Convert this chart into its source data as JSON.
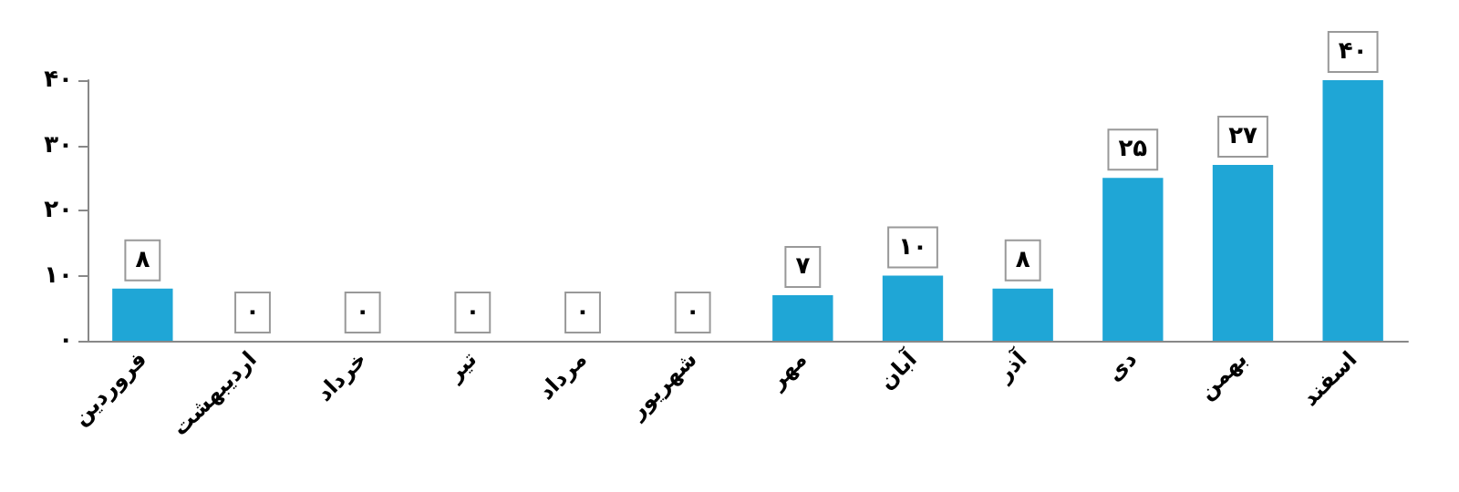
{
  "chart_data": {
    "type": "bar",
    "categories": [
      "فروردین",
      "اردیبهشت",
      "خرداد",
      "تیر",
      "مرداد",
      "شهریور",
      "مهر",
      "آبان",
      "آذر",
      "دی",
      "بهمن",
      "اسفند"
    ],
    "values": [
      8,
      0,
      0,
      0,
      0,
      0,
      7,
      10,
      8,
      25,
      27,
      40
    ],
    "value_labels": [
      "۸",
      "۰",
      "۰",
      "۰",
      "۰",
      "۰",
      "۷",
      "۱۰",
      "۸",
      "۲۵",
      "۲۷",
      "۴۰"
    ],
    "color": "#1fa6d6",
    "ylim": [
      0,
      40
    ],
    "yticks": [
      {
        "value": 0,
        "label": "۰"
      },
      {
        "value": 10,
        "label": "۱۰"
      },
      {
        "value": 20,
        "label": "۲۰"
      },
      {
        "value": 30,
        "label": "۳۰"
      },
      {
        "value": 40,
        "label": "۴۰"
      }
    ],
    "grid": false
  }
}
